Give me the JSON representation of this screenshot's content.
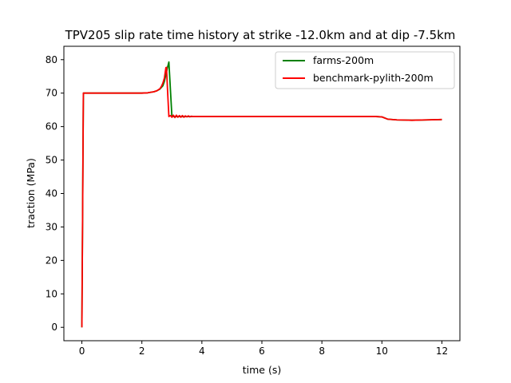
{
  "chart_data": {
    "type": "line",
    "title": "TPV205 slip rate time history at strike -12.0km and at dip -7.5km",
    "xlabel": "time (s)",
    "ylabel": "traction (MPa)",
    "xlim": [
      -0.6,
      12.6
    ],
    "ylim": [
      -4.0,
      84.0
    ],
    "xticks": [
      0,
      2,
      4,
      6,
      8,
      10,
      12
    ],
    "yticks": [
      0,
      10,
      20,
      30,
      40,
      50,
      60,
      70,
      80
    ],
    "xtick_labels": [
      "0",
      "2",
      "4",
      "6",
      "8",
      "10",
      "12"
    ],
    "ytick_labels": [
      "0",
      "10",
      "20",
      "30",
      "40",
      "50",
      "60",
      "70",
      "80"
    ],
    "grid": false,
    "legend_position": "top-right",
    "series": [
      {
        "name": "farms-200m",
        "color": "#008000",
        "x": [
          0.0,
          0.05,
          0.1,
          1.0,
          2.0,
          2.2,
          2.4,
          2.5,
          2.6,
          2.7,
          2.75,
          2.8,
          2.85,
          2.9,
          3.0,
          3.05,
          3.2,
          3.5,
          4.0,
          5.0,
          6.0,
          7.0,
          8.0,
          9.0,
          9.8,
          10.0,
          10.2,
          10.5,
          11.0,
          11.5,
          12.0
        ],
        "y": [
          0.0,
          70.0,
          70.0,
          70.0,
          70.0,
          70.1,
          70.4,
          70.7,
          71.2,
          72.2,
          73.5,
          75.5,
          77.5,
          79.3,
          63.2,
          63.0,
          63.0,
          63.0,
          63.0,
          63.0,
          63.0,
          63.0,
          63.0,
          63.0,
          63.0,
          62.9,
          62.2,
          62.0,
          61.9,
          62.0,
          62.1
        ]
      },
      {
        "name": "benchmark-pylith-200m",
        "color": "#ff0000",
        "x": [
          0.0,
          0.05,
          0.1,
          1.0,
          2.0,
          2.2,
          2.4,
          2.5,
          2.6,
          2.65,
          2.7,
          2.75,
          2.8,
          2.82,
          2.86,
          2.9,
          2.95,
          3.0,
          3.05,
          3.1,
          3.15,
          3.2,
          3.25,
          3.3,
          3.35,
          3.4,
          3.45,
          3.5,
          3.55,
          3.6,
          3.65,
          3.7,
          3.8,
          4.0,
          5.0,
          6.0,
          7.0,
          8.0,
          9.0,
          9.8,
          10.0,
          10.2,
          10.5,
          11.0,
          11.5,
          12.0
        ],
        "y": [
          0.0,
          70.0,
          70.0,
          70.0,
          70.0,
          70.1,
          70.4,
          70.7,
          71.3,
          72.0,
          73.0,
          74.5,
          77.6,
          77.7,
          70.0,
          63.0,
          63.3,
          62.8,
          63.4,
          62.7,
          63.4,
          62.8,
          63.3,
          62.8,
          63.3,
          62.8,
          63.2,
          62.9,
          63.2,
          62.9,
          63.1,
          63.0,
          63.0,
          63.0,
          63.0,
          63.0,
          63.0,
          63.0,
          63.0,
          63.0,
          62.9,
          62.2,
          62.0,
          61.9,
          62.0,
          62.1
        ]
      }
    ]
  }
}
